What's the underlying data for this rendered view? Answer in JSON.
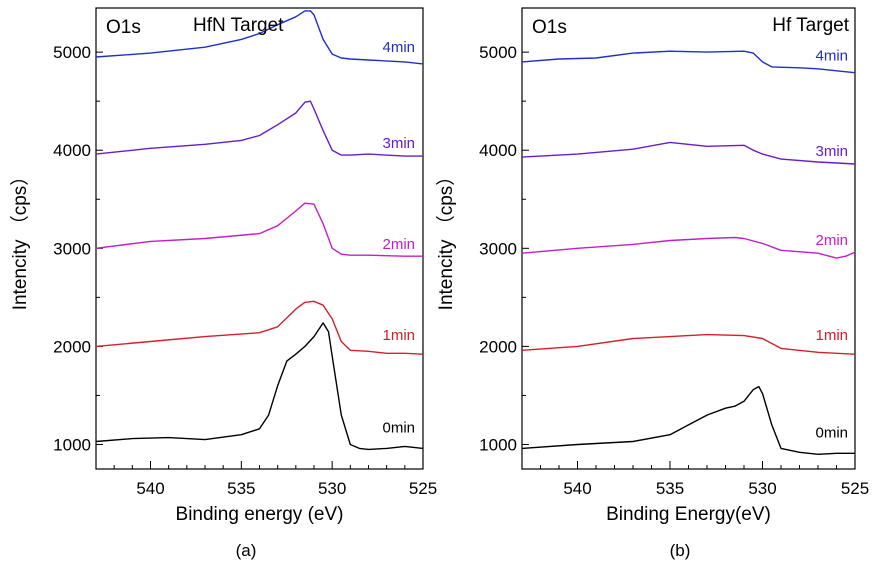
{
  "chart_data": [
    {
      "type": "line",
      "corner_label": "O1s",
      "title": "HfN Target",
      "xlabel": "Binding energy (eV)",
      "ylabel": "Intencity （cps）",
      "caption": "(a)",
      "xlim": [
        543,
        525
      ],
      "ylim": [
        750,
        5450
      ],
      "x_ticks": [
        540,
        535,
        530,
        525
      ],
      "y_ticks": [
        1000,
        2000,
        3000,
        4000,
        5000
      ],
      "grid": false,
      "series": [
        {
          "name": "0min",
          "color": "#000000",
          "x": [
            543,
            541,
            539,
            537,
            535,
            534,
            533.5,
            533,
            532.5,
            532,
            531.5,
            531,
            530.5,
            530.2,
            530,
            529.5,
            529,
            528.5,
            528,
            527,
            526,
            525
          ],
          "y": [
            1030,
            1060,
            1070,
            1050,
            1100,
            1160,
            1300,
            1600,
            1850,
            1920,
            2000,
            2100,
            2240,
            2150,
            1900,
            1300,
            1000,
            960,
            950,
            960,
            980,
            960
          ]
        },
        {
          "name": "1min",
          "color": "#d4202a",
          "x": [
            543,
            540,
            537,
            534,
            533,
            532,
            531.5,
            531,
            530.5,
            530,
            529.5,
            529,
            528,
            527,
            526,
            525
          ],
          "y": [
            2000,
            2050,
            2100,
            2140,
            2200,
            2380,
            2450,
            2460,
            2420,
            2280,
            2050,
            1960,
            1950,
            1930,
            1930,
            1920
          ]
        },
        {
          "name": "2min",
          "color": "#c020c8",
          "x": [
            543,
            540,
            537,
            534,
            533,
            532,
            531.5,
            531,
            530.5,
            530,
            529.5,
            529,
            528,
            526,
            525
          ],
          "y": [
            3000,
            3070,
            3100,
            3150,
            3230,
            3380,
            3460,
            3450,
            3250,
            3000,
            2940,
            2930,
            2930,
            2920,
            2920
          ]
        },
        {
          "name": "3min",
          "color": "#6a1cc8",
          "x": [
            543,
            540,
            537,
            535,
            534,
            533,
            532,
            531.5,
            531.2,
            531,
            530.5,
            530,
            529.5,
            529,
            528,
            526,
            525
          ],
          "y": [
            3960,
            4020,
            4060,
            4100,
            4150,
            4260,
            4380,
            4490,
            4500,
            4420,
            4200,
            4000,
            3950,
            3950,
            3960,
            3940,
            3940
          ]
        },
        {
          "name": "4min",
          "color": "#1f2fc8",
          "x": [
            543,
            540,
            537,
            535,
            534,
            533,
            532,
            531.5,
            531.2,
            531,
            530.5,
            530,
            529.5,
            529,
            528,
            526,
            525
          ],
          "y": [
            4950,
            4990,
            5050,
            5130,
            5190,
            5280,
            5360,
            5420,
            5420,
            5380,
            5130,
            4980,
            4940,
            4930,
            4920,
            4900,
            4880
          ]
        }
      ]
    },
    {
      "type": "line",
      "corner_label": "O1s",
      "title": "Hf Target",
      "xlabel": "Binding Energy(eV)",
      "ylabel": "Intencity （cps）",
      "caption": "(b)",
      "xlim": [
        543,
        525
      ],
      "ylim": [
        750,
        5450
      ],
      "x_ticks": [
        540,
        535,
        530,
        525
      ],
      "y_ticks": [
        1000,
        2000,
        3000,
        4000,
        5000
      ],
      "grid": false,
      "series": [
        {
          "name": "0min",
          "color": "#000000",
          "x": [
            543,
            540,
            537,
            535,
            534,
            533,
            532,
            531.5,
            531,
            530.5,
            530.2,
            530,
            529.5,
            529,
            528,
            527,
            526,
            525
          ],
          "y": [
            960,
            1000,
            1030,
            1100,
            1200,
            1300,
            1370,
            1390,
            1440,
            1560,
            1590,
            1520,
            1200,
            960,
            920,
            900,
            910,
            910
          ]
        },
        {
          "name": "1min",
          "color": "#d4202a",
          "x": [
            543,
            540,
            537,
            535,
            533,
            531,
            530,
            529,
            527,
            526,
            525
          ],
          "y": [
            1960,
            2000,
            2080,
            2100,
            2120,
            2110,
            2080,
            1980,
            1940,
            1930,
            1920
          ]
        },
        {
          "name": "2min",
          "color": "#c020c8",
          "x": [
            543,
            540,
            537,
            535,
            533,
            531.5,
            531,
            530,
            529,
            527,
            526,
            525.5,
            525
          ],
          "y": [
            2950,
            3000,
            3040,
            3080,
            3100,
            3110,
            3100,
            3050,
            2980,
            2950,
            2900,
            2920,
            2960
          ]
        },
        {
          "name": "3min",
          "color": "#6a1cc8",
          "x": [
            543,
            540,
            537,
            535,
            533,
            531,
            530.5,
            530,
            529,
            527,
            526,
            525
          ],
          "y": [
            3930,
            3960,
            4010,
            4080,
            4040,
            4050,
            4000,
            3960,
            3910,
            3880,
            3870,
            3860
          ]
        },
        {
          "name": "4min",
          "color": "#1f2fc8",
          "x": [
            543,
            541,
            539,
            537,
            535,
            533,
            531,
            530.5,
            530,
            529.5,
            528,
            527,
            526,
            525
          ],
          "y": [
            4900,
            4930,
            4940,
            4990,
            5010,
            5000,
            5010,
            4990,
            4900,
            4850,
            4840,
            4830,
            4810,
            4790
          ]
        }
      ]
    }
  ]
}
